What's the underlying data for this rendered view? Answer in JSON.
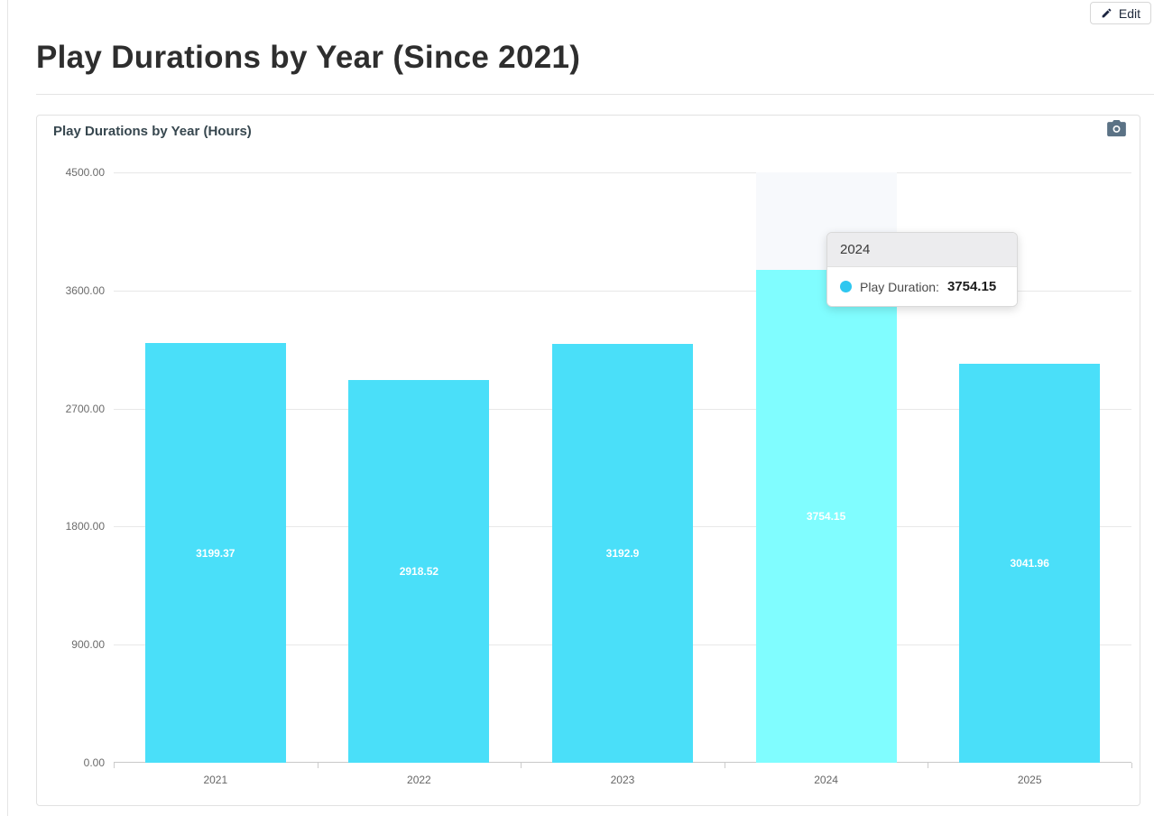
{
  "page": {
    "heading": "Play Durations by Year (Since 2021)",
    "edit_button_label": "Edit"
  },
  "card": {
    "title": "Play Durations by Year (Hours)"
  },
  "colors": {
    "bar": "#4adff9",
    "bar_highlighted": "#80fdff",
    "hover_shadow": "#f7f9fc",
    "tooltip_dot": "#2ec7f0",
    "camera_icon": "#5b7285",
    "pencil_icon": "#1c2540"
  },
  "chart_data": {
    "type": "bar",
    "title": "Play Durations by Year (Hours)",
    "categories": [
      "2021",
      "2022",
      "2023",
      "2024",
      "2025"
    ],
    "series": [
      {
        "name": "Play Duration",
        "values": [
          3199.37,
          2918.52,
          3192.9,
          3754.15,
          3041.96
        ]
      }
    ],
    "value_labels": [
      "3199.37",
      "2918.52",
      "3192.9",
      "3754.15",
      "3041.96"
    ],
    "xlabel": "",
    "ylabel": "",
    "ylim": [
      0,
      4500
    ],
    "ytick_interval": 900,
    "ytick_labels": [
      "4500.00",
      "3600.00",
      "2700.00",
      "1800.00",
      "900.00",
      "0.00"
    ],
    "grid": true,
    "legend": false,
    "highlighted_category": "2024"
  },
  "tooltip": {
    "title": "2024",
    "series_label": "Play Duration:",
    "value": "3754.15"
  }
}
